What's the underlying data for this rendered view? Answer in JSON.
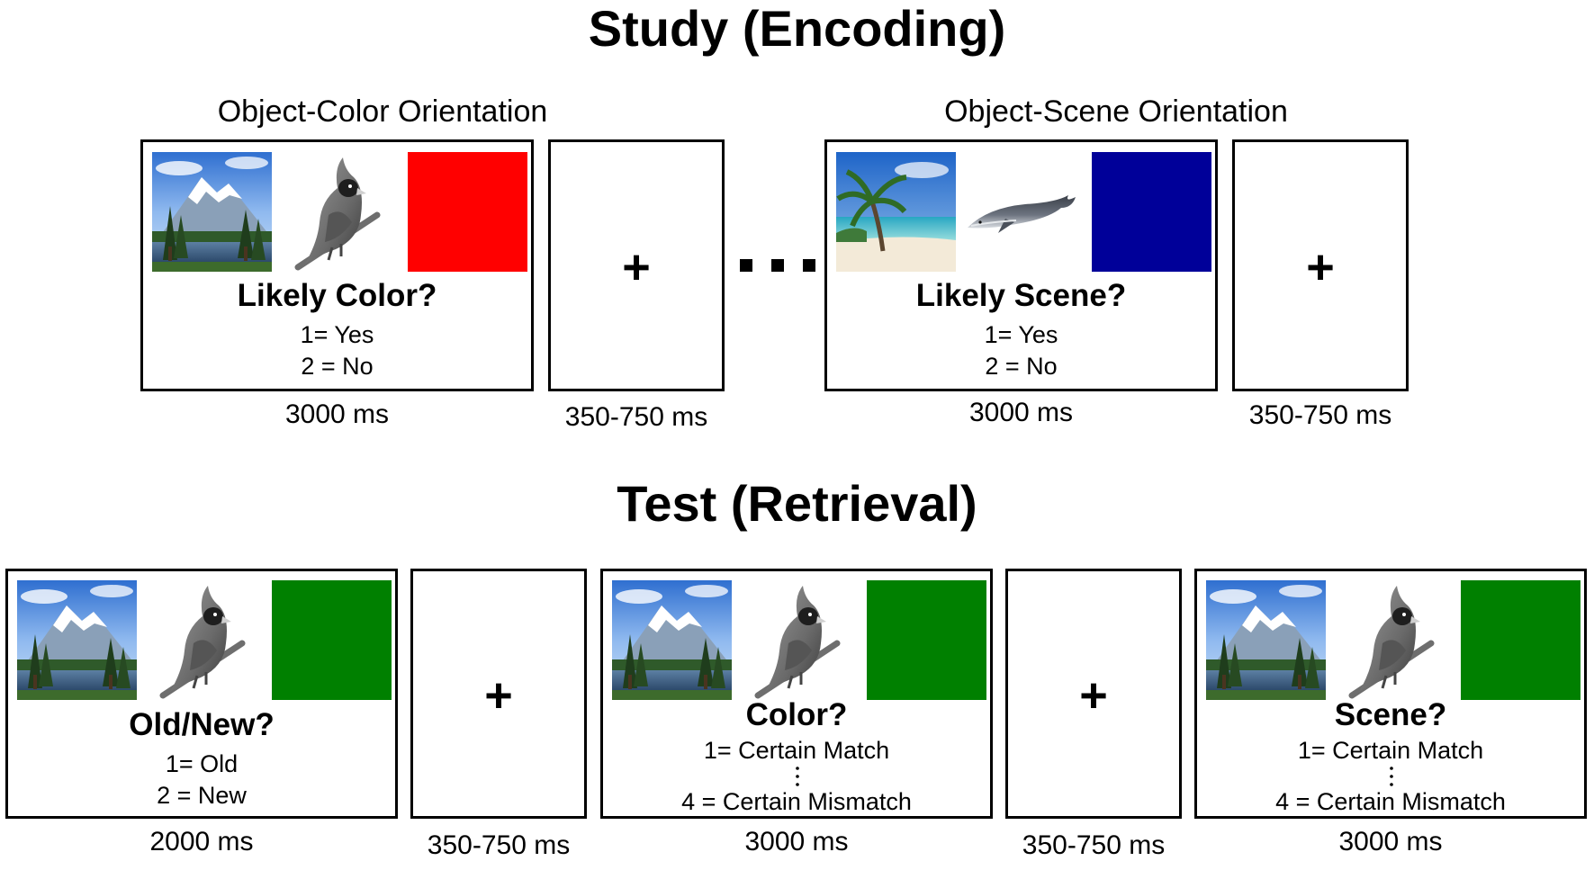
{
  "study": {
    "title": "Study (Encoding)",
    "conditions": [
      {
        "label": "Object-Color Orientation",
        "trial": {
          "scene_icon": "mountain-lake-scene-icon",
          "object_icon": "cardinal-bird-icon",
          "color": "#ff0000",
          "question": "Likely Color?",
          "option1": "1= Yes",
          "option2": "2 = No",
          "duration": "3000 ms"
        },
        "fixation": {
          "symbol": "+",
          "duration": "350-750 ms"
        }
      },
      {
        "label": "Object-Scene Orientation",
        "trial": {
          "scene_icon": "beach-palm-scene-icon",
          "object_icon": "whale-icon",
          "color": "#000099",
          "question": "Likely Scene?",
          "option1": "1= Yes",
          "option2": "2 = No",
          "duration": "3000 ms"
        },
        "fixation": {
          "symbol": "+",
          "duration": "350-750 ms"
        }
      }
    ]
  },
  "test": {
    "title": "Test (Retrieval)",
    "color": "#008000",
    "trials": [
      {
        "question": "Old/New?",
        "option1": "1= Old",
        "option2": "2 = New",
        "duration": "2000 ms"
      },
      {
        "question": "Color?",
        "option1": "1= Certain Match",
        "option2": "4 = Certain Mismatch",
        "duration": "3000 ms"
      },
      {
        "question": "Scene?",
        "option1": "1= Certain Match",
        "option2": "4 = Certain Mismatch",
        "duration": "3000 ms"
      }
    ],
    "fixations": [
      {
        "symbol": "+",
        "duration": "350-750 ms"
      },
      {
        "symbol": "+",
        "duration": "350-750 ms"
      }
    ]
  }
}
